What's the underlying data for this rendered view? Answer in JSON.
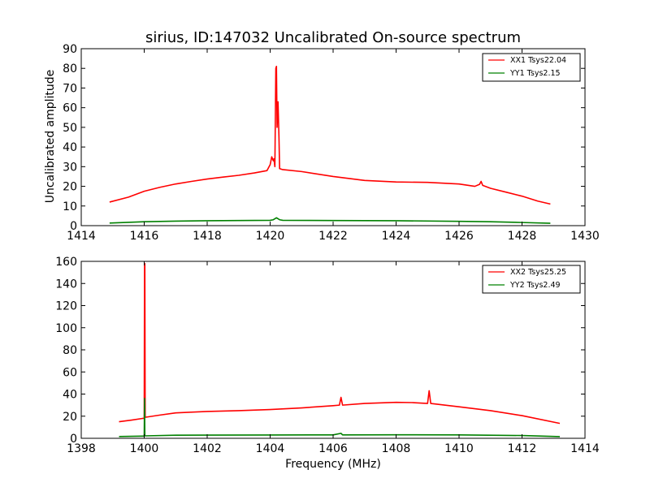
{
  "chart_data": [
    {
      "type": "line",
      "title": "sirius, ID:147032 Uncalibrated On-source spectrum",
      "xlabel": "",
      "ylabel": "Uncalibrated amplitude",
      "xlim": [
        1414,
        1430
      ],
      "ylim": [
        0,
        90
      ],
      "xticks": [
        "1414",
        "1416",
        "1418",
        "1420",
        "1422",
        "1424",
        "1426",
        "1428",
        "1430"
      ],
      "yticks": [
        "0",
        "10",
        "20",
        "30",
        "40",
        "50",
        "60",
        "70",
        "80",
        "90"
      ],
      "legend_position": "top-right",
      "series": [
        {
          "name": "XX1 Tsys22.04",
          "color": "#ff0000",
          "points": [
            [
              1414.9,
              12
            ],
            [
              1415.5,
              14.5
            ],
            [
              1416,
              17.5
            ],
            [
              1416.5,
              19.5
            ],
            [
              1417,
              21.2
            ],
            [
              1417.5,
              22.5
            ],
            [
              1418,
              23.7
            ],
            [
              1418.5,
              24.7
            ],
            [
              1419,
              25.6
            ],
            [
              1419.5,
              26.8
            ],
            [
              1419.9,
              28
            ],
            [
              1420.0,
              31
            ],
            [
              1420.05,
              35
            ],
            [
              1420.1,
              33
            ],
            [
              1420.12,
              34
            ],
            [
              1420.15,
              30
            ],
            [
              1420.18,
              80
            ],
            [
              1420.2,
              81
            ],
            [
              1420.22,
              50
            ],
            [
              1420.25,
              63
            ],
            [
              1420.28,
              45
            ],
            [
              1420.3,
              29
            ],
            [
              1420.4,
              28.5
            ],
            [
              1421,
              27.5
            ],
            [
              1422,
              25
            ],
            [
              1423,
              23
            ],
            [
              1424,
              22.2
            ],
            [
              1425,
              22
            ],
            [
              1426,
              21.2
            ],
            [
              1426.5,
              20
            ],
            [
              1426.65,
              21
            ],
            [
              1426.7,
              22.5
            ],
            [
              1426.75,
              20.5
            ],
            [
              1427,
              19
            ],
            [
              1427.5,
              17
            ],
            [
              1428,
              15
            ],
            [
              1428.5,
              12.5
            ],
            [
              1428.9,
              11
            ]
          ]
        },
        {
          "name": "YY1 Tsys2.15",
          "color": "#008000",
          "points": [
            [
              1414.9,
              1.3
            ],
            [
              1416,
              2.0
            ],
            [
              1417,
              2.3
            ],
            [
              1418,
              2.5
            ],
            [
              1419,
              2.6
            ],
            [
              1420,
              2.7
            ],
            [
              1420.1,
              3.0
            ],
            [
              1420.2,
              4.0
            ],
            [
              1420.3,
              3.0
            ],
            [
              1420.4,
              2.7
            ],
            [
              1422,
              2.6
            ],
            [
              1424,
              2.5
            ],
            [
              1426,
              2.2
            ],
            [
              1427,
              2.0
            ],
            [
              1428,
              1.6
            ],
            [
              1428.9,
              1.2
            ]
          ]
        }
      ]
    },
    {
      "type": "line",
      "title": "",
      "xlabel": "Frequency (MHz)",
      "ylabel": "",
      "xlim": [
        1398,
        1414
      ],
      "ylim": [
        0,
        160
      ],
      "xticks": [
        "1398",
        "1400",
        "1402",
        "1404",
        "1406",
        "1408",
        "1410",
        "1412",
        "1414"
      ],
      "yticks": [
        "0",
        "20",
        "40",
        "60",
        "80",
        "100",
        "120",
        "140",
        "160"
      ],
      "legend_position": "top-right",
      "series": [
        {
          "name": "XX2 Tsys25.25",
          "color": "#ff0000",
          "points": [
            [
              1399.2,
              15
            ],
            [
              1399.6,
              16.5
            ],
            [
              1399.95,
              18
            ],
            [
              1400.0,
              18
            ],
            [
              1400.01,
              158
            ],
            [
              1400.02,
              158
            ],
            [
              1400.03,
              19
            ],
            [
              1400.5,
              21
            ],
            [
              1401,
              23
            ],
            [
              1402,
              24.3
            ],
            [
              1403,
              25
            ],
            [
              1404,
              26
            ],
            [
              1405,
              27.5
            ],
            [
              1406,
              29.5
            ],
            [
              1406.2,
              30
            ],
            [
              1406.25,
              37
            ],
            [
              1406.3,
              30
            ],
            [
              1407,
              31.5
            ],
            [
              1408,
              32.5
            ],
            [
              1408.5,
              32.3
            ],
            [
              1409,
              31.5
            ],
            [
              1409.05,
              43
            ],
            [
              1409.1,
              31.5
            ],
            [
              1410,
              28.5
            ],
            [
              1411,
              25
            ],
            [
              1412,
              20.5
            ],
            [
              1413.2,
              13.5
            ]
          ]
        },
        {
          "name": "YY2 Tsys2.49",
          "color": "#008000",
          "points": [
            [
              1399.2,
              1.6
            ],
            [
              1399.95,
              2.0
            ],
            [
              1400.0,
              2.0
            ],
            [
              1400.01,
              36
            ],
            [
              1400.02,
              2.2
            ],
            [
              1401,
              2.8
            ],
            [
              1402,
              2.9
            ],
            [
              1404,
              3.0
            ],
            [
              1406,
              3.1
            ],
            [
              1406.25,
              4.5
            ],
            [
              1406.3,
              3.1
            ],
            [
              1408,
              3.2
            ],
            [
              1410,
              3.1
            ],
            [
              1412,
              2.5
            ],
            [
              1413.2,
              1.5
            ]
          ]
        }
      ]
    }
  ]
}
